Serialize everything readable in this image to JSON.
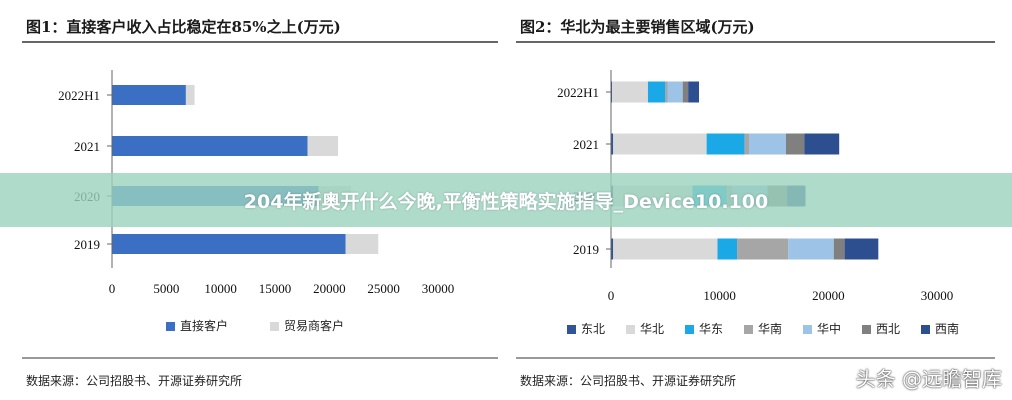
{
  "banner": {
    "text": "204年新奥开什么今晚,平衡性策略实施指导_Device10.100"
  },
  "watermark": "头条 @远瞻智库",
  "colors": {
    "blue_dark": "#3a6fc4",
    "gray_light": "#d9d9d9",
    "navy": "#2f5597",
    "cyan": "#1aa9e6",
    "gray_mid": "#a6a6a6",
    "blue_light": "#9dc3e6",
    "gray_dark": "#808080",
    "blue_deep": "#2e4f8f"
  },
  "chart_data": [
    {
      "type": "bar",
      "orientation": "horizontal",
      "stacked": true,
      "title": "图1：直接客户收入占比稳定在85%之上(万元)",
      "categories": [
        "2022H1",
        "2021",
        "2020",
        "2019"
      ],
      "series": [
        {
          "name": "直接客户",
          "color": "#3a6fc4",
          "values": [
            6800,
            18000,
            19000,
            21500
          ]
        },
        {
          "name": "贸易商客户",
          "color": "#d9d9d9",
          "values": [
            800,
            2800,
            3000,
            3000
          ]
        }
      ],
      "xlim": [
        0,
        30000
      ],
      "xticks": [
        "0",
        "5000",
        "10000",
        "15000",
        "20000",
        "25000",
        "30000"
      ],
      "legend_position": "bottom",
      "source": "数据来源：公司招股书、开源证券研究所"
    },
    {
      "type": "bar",
      "orientation": "horizontal",
      "stacked": true,
      "title": "图2：华北为最主要销售区域(万元)",
      "categories": [
        "2022H1",
        "2021",
        "2020",
        "2019"
      ],
      "series": [
        {
          "name": "东北",
          "color": "#2f5597",
          "values": [
            100,
            200,
            200,
            200
          ]
        },
        {
          "name": "华北",
          "color": "#d9d9d9",
          "values": [
            3300,
            8600,
            7300,
            9600
          ]
        },
        {
          "name": "华东",
          "color": "#1aa9e6",
          "values": [
            1600,
            3500,
            3200,
            1800
          ]
        },
        {
          "name": "华南",
          "color": "#a6a6a6",
          "values": [
            200,
            400,
            500,
            4700
          ]
        },
        {
          "name": "华中",
          "color": "#9dc3e6",
          "values": [
            1400,
            3400,
            3200,
            4200
          ]
        },
        {
          "name": "西北",
          "color": "#808080",
          "values": [
            500,
            1700,
            1800,
            1000
          ]
        },
        {
          "name": "西南",
          "color": "#2e4f8f",
          "values": [
            1000,
            3200,
            1700,
            3100
          ]
        }
      ],
      "xlim": [
        0,
        30000
      ],
      "xticks": [
        "0",
        "10000",
        "20000",
        "30000"
      ],
      "legend_position": "bottom",
      "source": "数据来源：公司招股书、开源证券研究所"
    }
  ]
}
